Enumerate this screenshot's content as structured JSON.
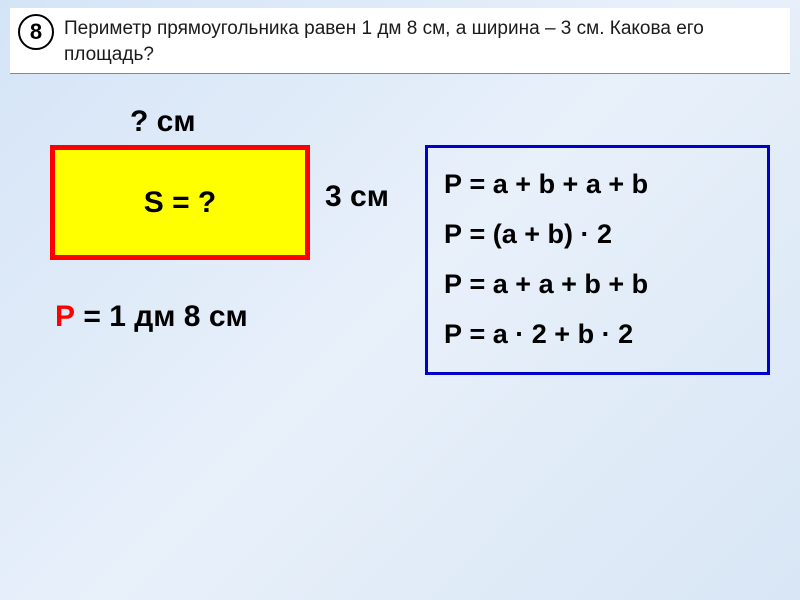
{
  "problem": {
    "number": "8",
    "text": "Периметр прямоугольника равен 1 дм 8 см, а ширина – 3 см. Какова его площадь?"
  },
  "diagram": {
    "length_label": "? см",
    "width_label": "3 см",
    "area_label": "S = ?",
    "perimeter_p": "Р",
    "perimeter_rest": " = 1 дм 8 см",
    "rectangle_fill": "#ffff00",
    "rectangle_border": "#ff0000",
    "rectangle_border_width": 5
  },
  "formulas": {
    "box_border_color": "#0000cc",
    "items": [
      "Р = a + b + a + b",
      "Р = (a + b) · 2",
      "Р = a + a + b + b",
      "Р = a · 2 + b · 2"
    ]
  },
  "styling": {
    "background_gradient_start": "#d4e4f7",
    "background_gradient_end": "#d8e6f5",
    "text_color": "#000000",
    "accent_color": "#ff0000",
    "font_family": "Arial",
    "label_fontsize": 30,
    "problem_fontsize": 19,
    "formula_fontsize": 27
  }
}
